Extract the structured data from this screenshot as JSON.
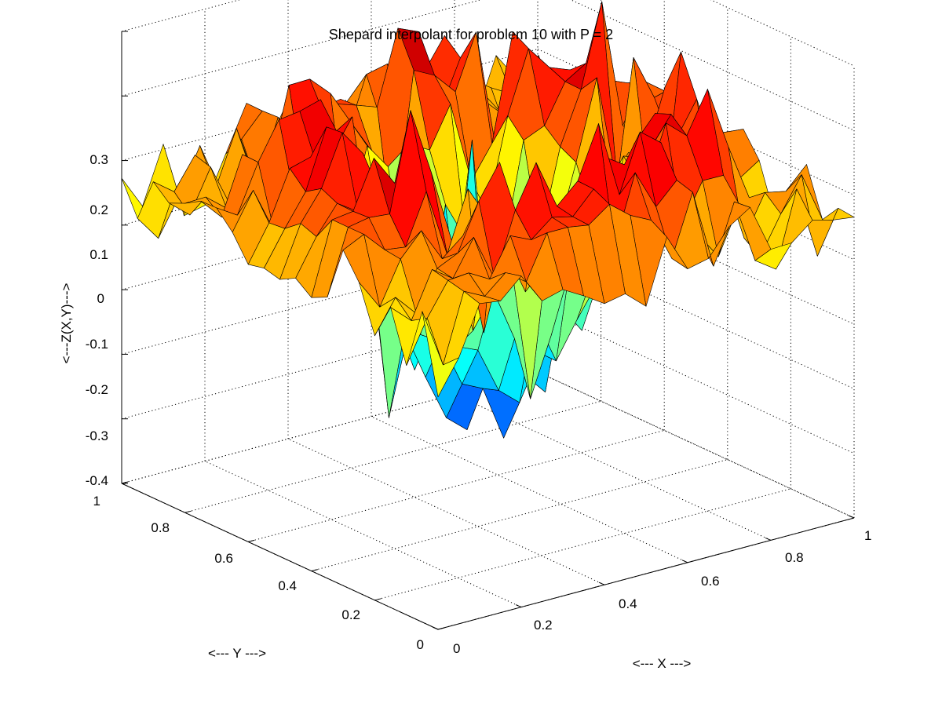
{
  "chart_data": {
    "type": "surface",
    "title": "Shepard interpolant for problem 10 with P = 2",
    "xlabel": "<--- X --->",
    "ylabel": "<--- Y --->",
    "zlabel": "<---Z(X,Y)--->",
    "xlim": [
      0,
      1
    ],
    "ylim": [
      0,
      1
    ],
    "zlim": [
      -0.4,
      0.3
    ],
    "x_ticks": [
      "0",
      "0.2",
      "0.4",
      "0.6",
      "0.8",
      "1"
    ],
    "y_ticks": [
      "0",
      "0.2",
      "0.4",
      "0.6",
      "0.8",
      "1"
    ],
    "z_ticks": [
      "-0.4",
      "-0.3",
      "-0.2",
      "-0.1",
      "0",
      "0.1",
      "0.2",
      "0.3"
    ],
    "grid": true,
    "colormap": "jet",
    "mesh_resolution": 21,
    "surface_description": "Shepard (inverse-distance, P = 2) interpolant on the unit square: rim near 0 to 0.25 with spikes, central depression down to about -0.38, sharp spike near the centre"
  }
}
